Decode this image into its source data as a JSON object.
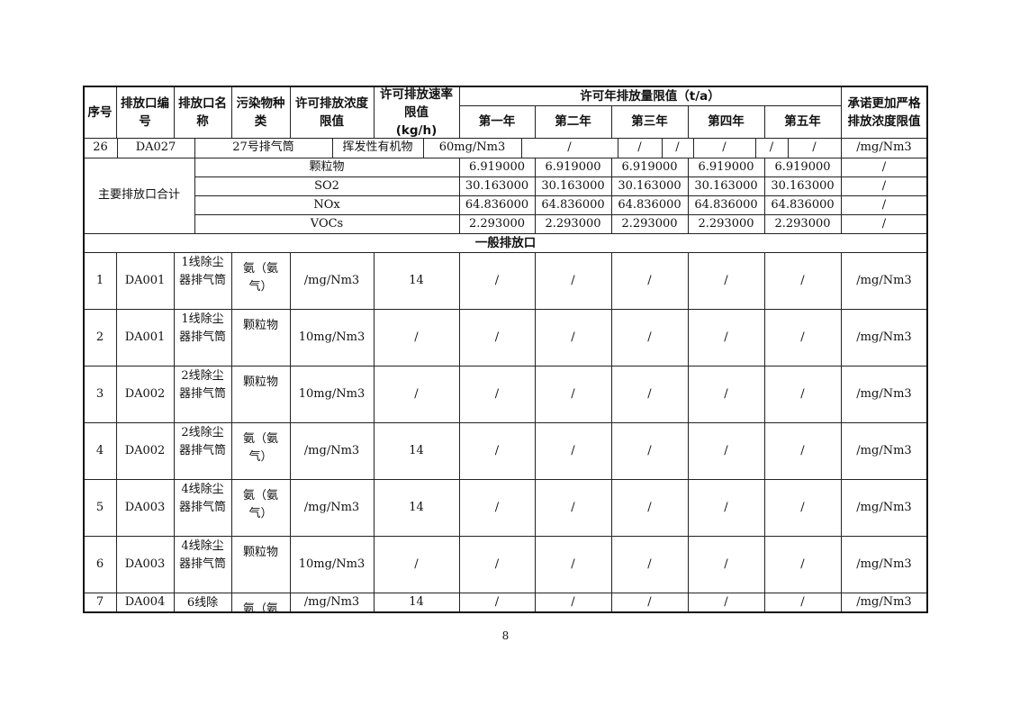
{
  "header": {
    "seq": "序号",
    "outlet_code": "排放口编号",
    "outlet_name": "排放口名称",
    "pollutant": "污染物种类",
    "conc_limit": "许可排放浓度限值",
    "rate_limit": "许可排放速率限值",
    "rate_unit": "(kg/h)",
    "annual_limit": "许可年排放量限值（t/a）",
    "years": [
      "第一年",
      "第二年",
      "第三年",
      "第四年",
      "第五年"
    ],
    "stricter": "承诺更加严格排放浓度限值"
  },
  "row26": [
    "26",
    "DA027",
    "27号排气筒",
    "挥发性有机物",
    "60mg/Nm3",
    "/",
    "/",
    "/",
    "/",
    "/",
    "/",
    "/mg/Nm3"
  ],
  "major_total": {
    "label": "主要排放口合计",
    "rows": [
      {
        "pollutant": "颗粒物",
        "values": [
          "6.919000",
          "6.919000",
          "6.919000",
          "6.919000",
          "6.919000"
        ],
        "stricter": "/"
      },
      {
        "pollutant": "SO2",
        "values": [
          "30.163000",
          "30.163000",
          "30.163000",
          "30.163000",
          "30.163000"
        ],
        "stricter": "/"
      },
      {
        "pollutant": "NOx",
        "values": [
          "64.836000",
          "64.836000",
          "64.836000",
          "64.836000",
          "64.836000"
        ],
        "stricter": "/"
      },
      {
        "pollutant": "VOCs",
        "values": [
          "2.293000",
          "2.293000",
          "2.293000",
          "2.293000",
          "2.293000"
        ],
        "stricter": "/"
      }
    ]
  },
  "general_section": "一般排放口",
  "general_rows": [
    {
      "seq": "1",
      "code": "DA001",
      "name": "1线除尘器排气筒",
      "pollutant": "氨（氨气）",
      "conc": "/mg/Nm3",
      "rate": "14",
      "years": [
        "/",
        "/",
        "/",
        "/",
        "/"
      ],
      "stricter": "/mg/Nm3"
    },
    {
      "seq": "2",
      "code": "DA001",
      "name": "1线除尘器排气筒",
      "pollutant": "颗粒物",
      "conc": "10mg/Nm3",
      "rate": "/",
      "years": [
        "/",
        "/",
        "/",
        "/",
        "/"
      ],
      "stricter": "/mg/Nm3"
    },
    {
      "seq": "3",
      "code": "DA002",
      "name": "2线除尘器排气筒",
      "pollutant": "颗粒物",
      "conc": "10mg/Nm3",
      "rate": "/",
      "years": [
        "/",
        "/",
        "/",
        "/",
        "/"
      ],
      "stricter": "/mg/Nm3"
    },
    {
      "seq": "4",
      "code": "DA002",
      "name": "2线除尘器排气筒",
      "pollutant": "氨（氨气）",
      "conc": "/mg/Nm3",
      "rate": "14",
      "years": [
        "/",
        "/",
        "/",
        "/",
        "/"
      ],
      "stricter": "/mg/Nm3"
    },
    {
      "seq": "5",
      "code": "DA003",
      "name": "4线除尘器排气筒",
      "pollutant": "氨（氨气）",
      "conc": "/mg/Nm3",
      "rate": "14",
      "years": [
        "/",
        "/",
        "/",
        "/",
        "/"
      ],
      "stricter": "/mg/Nm3"
    },
    {
      "seq": "6",
      "code": "DA003",
      "name": "4线除尘器排气筒",
      "pollutant": "颗粒物",
      "conc": "10mg/Nm3",
      "rate": "/",
      "years": [
        "/",
        "/",
        "/",
        "/",
        "/"
      ],
      "stricter": "/mg/Nm3"
    },
    {
      "seq": "7",
      "code": "DA004",
      "name": "6线除",
      "pollutant": "氨（氨",
      "conc": "/mg/Nm3",
      "rate": "14",
      "years": [
        "/",
        "/",
        "/",
        "/",
        "/"
      ],
      "stricter": "/mg/Nm3"
    }
  ],
  "page_number": "8"
}
